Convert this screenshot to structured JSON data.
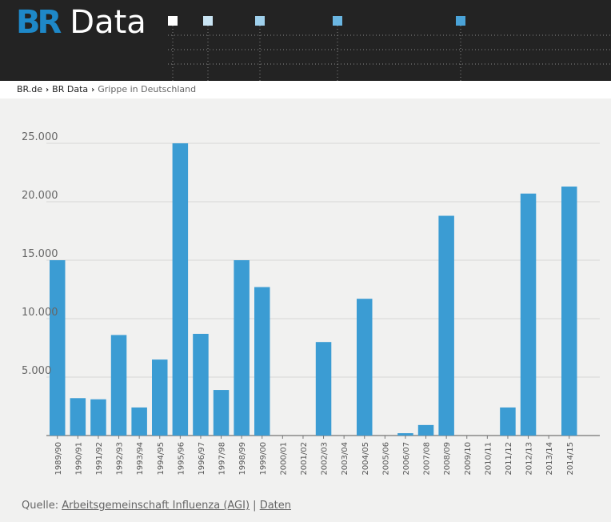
{
  "header": {
    "logo_mark": "BR",
    "logo_text": "Data",
    "colors": {
      "background": "#232323",
      "accent": "#1e88c8"
    }
  },
  "breadcrumb": {
    "items": [
      "BR.de",
      "BR Data"
    ],
    "current": "Grippe in Deutschland"
  },
  "chart_data": {
    "type": "bar",
    "title": "",
    "xlabel": "",
    "ylabel": "",
    "ylim": [
      0,
      25000
    ],
    "yticks": [
      "5.000",
      "10.000",
      "15.000",
      "20.000",
      "25.000"
    ],
    "grid": true,
    "bar_color": "#3b9cd3",
    "categories": [
      "1989/90",
      "1990/91",
      "1991/92",
      "1992/93",
      "1993/94",
      "1994/95",
      "1995/96",
      "1996/97",
      "1997/98",
      "1998/99",
      "1999/00",
      "2000/01",
      "2001/02",
      "2002/03",
      "2003/04",
      "2004/05",
      "2005/06",
      "2006/07",
      "2007/08",
      "2008/09",
      "2009/10",
      "2010/11",
      "2011/12",
      "2012/13",
      "2013/14",
      "2014/15"
    ],
    "values": [
      15000,
      3200,
      3100,
      8600,
      2400,
      6500,
      25000,
      8700,
      3900,
      15000,
      12700,
      0,
      0,
      8000,
      0,
      11700,
      0,
      200,
      900,
      18800,
      0,
      0,
      2400,
      20700,
      0,
      21300
    ]
  },
  "source": {
    "prefix": "Quelle:",
    "link_agi": "Arbeitsgemeinschaft Influenza (AGI)",
    "divider": "|",
    "link_data": "Daten"
  }
}
